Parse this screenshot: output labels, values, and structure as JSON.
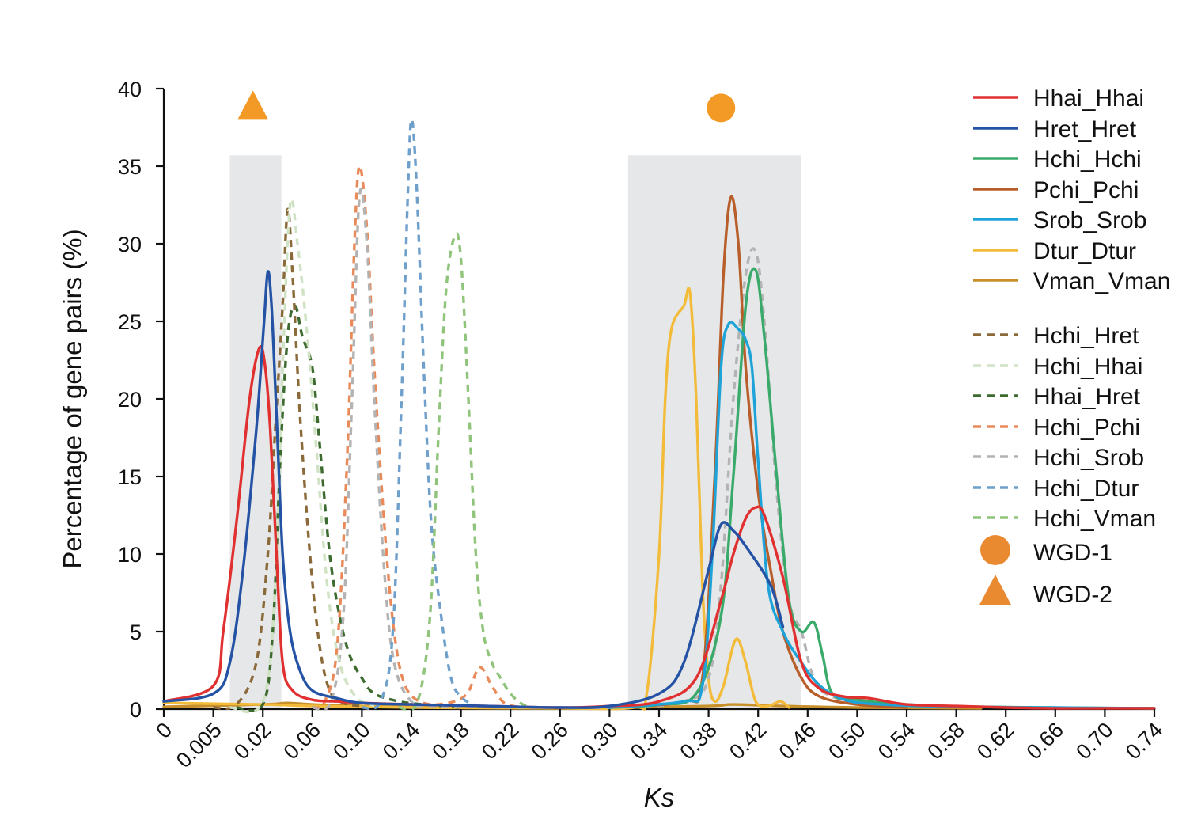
{
  "chart_data": {
    "type": "line",
    "title": "",
    "xlabel": "Ks",
    "ylabel": "Percentage of gene pairs (%)",
    "x_tick_labels": [
      "0",
      "0.005",
      "0.02",
      "0.06",
      "0.10",
      "0.14",
      "0.18",
      "0.22",
      "0.26",
      "0.30",
      "0.34",
      "0.38",
      "0.42",
      "0.46",
      "0.50",
      "0.54",
      "0.58",
      "0.62",
      "0.66",
      "0.70",
      "0.74"
    ],
    "y_ticks": [
      0,
      5,
      10,
      15,
      20,
      25,
      30,
      35,
      40
    ],
    "y_tick_labels": [
      "0",
      "5",
      "10",
      "15",
      "20",
      "25",
      "30",
      "35",
      "40"
    ],
    "ylim": [
      0,
      40
    ],
    "grid": false,
    "legend_position": "right",
    "highlight_regions": [
      {
        "x_range": [
          0.01,
          0.035
        ],
        "y_top": 35.7,
        "color": "#e6e7e9"
      },
      {
        "x_range": [
          0.315,
          0.455
        ],
        "y_top": 35.7,
        "color": "#e6e7e9"
      }
    ],
    "markers": [
      {
        "name": "WGD-1",
        "shape": "circle",
        "x": 0.39,
        "y": 38.5,
        "color": "#f29a25"
      },
      {
        "name": "WGD-2",
        "shape": "triangle",
        "x": 0.017,
        "y": 38.5,
        "color": "#f29a25"
      }
    ],
    "series": [
      {
        "name": "Hhai_Hhai",
        "color": "#e03030",
        "style": "solid",
        "points": [
          [
            -0.04,
            0.1
          ],
          [
            -0.03,
            0.15
          ],
          [
            -0.02,
            0.2
          ],
          [
            -0.01,
            0.3
          ],
          [
            0,
            0.5
          ],
          [
            0.005,
            1.5
          ],
          [
            0.008,
            5
          ],
          [
            0.012,
            12
          ],
          [
            0.016,
            20
          ],
          [
            0.019,
            23.3
          ],
          [
            0.022,
            22
          ],
          [
            0.026,
            18
          ],
          [
            0.031,
            10
          ],
          [
            0.036,
            3
          ],
          [
            0.044,
            1.2
          ],
          [
            0.06,
            0.6
          ],
          [
            0.08,
            0.5
          ],
          [
            0.1,
            0.4
          ],
          [
            0.14,
            0.3
          ],
          [
            0.2,
            0.2
          ],
          [
            0.26,
            0.1
          ],
          [
            0.3,
            0.2
          ],
          [
            0.34,
            0.5
          ],
          [
            0.37,
            2
          ],
          [
            0.39,
            7
          ],
          [
            0.4,
            10
          ],
          [
            0.41,
            12.3
          ],
          [
            0.418,
            13
          ],
          [
            0.425,
            12.5
          ],
          [
            0.44,
            8.5
          ],
          [
            0.455,
            3
          ],
          [
            0.47,
            1.3
          ],
          [
            0.49,
            0.8
          ],
          [
            0.51,
            0.7
          ],
          [
            0.54,
            0.3
          ],
          [
            0.58,
            0.2
          ],
          [
            0.62,
            0.1
          ],
          [
            0.66,
            0.05
          ],
          [
            0.7,
            0.05
          ],
          [
            0.74,
            0.05
          ]
        ]
      },
      {
        "name": "Hret_Hret",
        "color": "#2452a4",
        "style": "solid",
        "points": [
          [
            -0.04,
            0.1
          ],
          [
            -0.02,
            0.2
          ],
          [
            0,
            0.5
          ],
          [
            0.005,
            1
          ],
          [
            0.01,
            3
          ],
          [
            0.014,
            9
          ],
          [
            0.018,
            18
          ],
          [
            0.021,
            25
          ],
          [
            0.024,
            28.2
          ],
          [
            0.027,
            26
          ],
          [
            0.031,
            19
          ],
          [
            0.036,
            10
          ],
          [
            0.042,
            5
          ],
          [
            0.05,
            2.5
          ],
          [
            0.06,
            1.2
          ],
          [
            0.08,
            0.7
          ],
          [
            0.1,
            0.4
          ],
          [
            0.14,
            0.3
          ],
          [
            0.2,
            0.2
          ],
          [
            0.26,
            0.1
          ],
          [
            0.3,
            0.2
          ],
          [
            0.34,
            1
          ],
          [
            0.36,
            3
          ],
          [
            0.38,
            9
          ],
          [
            0.39,
            11.9
          ],
          [
            0.4,
            11.5
          ],
          [
            0.41,
            10.5
          ],
          [
            0.43,
            8
          ],
          [
            0.44,
            5.3
          ]
        ]
      },
      {
        "name": "Hchi_Hchi",
        "color": "#3aaa6a",
        "style": "solid",
        "points": [
          [
            0.3,
            0.1
          ],
          [
            0.34,
            0.3
          ],
          [
            0.37,
            1
          ],
          [
            0.39,
            6
          ],
          [
            0.4,
            15
          ],
          [
            0.41,
            26
          ],
          [
            0.418,
            28.3
          ],
          [
            0.425,
            24
          ],
          [
            0.435,
            15
          ],
          [
            0.445,
            7
          ],
          [
            0.455,
            5
          ],
          [
            0.465,
            5.6
          ],
          [
            0.472,
            3.5
          ],
          [
            0.48,
            1
          ],
          [
            0.5,
            0.6
          ],
          [
            0.54,
            0.3
          ],
          [
            0.6,
            0.15
          ],
          [
            0.74,
            0.05
          ]
        ]
      },
      {
        "name": "Pchi_Pchi",
        "color": "#b85e2a",
        "style": "solid",
        "points": [
          [
            0.3,
            0.1
          ],
          [
            0.36,
            0.5
          ],
          [
            0.375,
            2
          ],
          [
            0.385,
            15
          ],
          [
            0.392,
            28
          ],
          [
            0.398,
            33
          ],
          [
            0.404,
            30
          ],
          [
            0.41,
            22
          ],
          [
            0.42,
            14
          ],
          [
            0.43,
            9
          ],
          [
            0.44,
            5
          ],
          [
            0.455,
            2
          ],
          [
            0.47,
            0.8
          ],
          [
            0.5,
            0.3
          ],
          [
            0.54,
            0.1
          ]
        ]
      },
      {
        "name": "Srob_Srob",
        "color": "#1ea3d8",
        "style": "solid",
        "points": [
          [
            0.3,
            0.1
          ],
          [
            0.36,
            0.5
          ],
          [
            0.375,
            1.5
          ],
          [
            0.383,
            10
          ],
          [
            0.39,
            22
          ],
          [
            0.396,
            24.8
          ],
          [
            0.404,
            24.5
          ],
          [
            0.41,
            23.8
          ],
          [
            0.415,
            22
          ],
          [
            0.42,
            16
          ],
          [
            0.428,
            8
          ],
          [
            0.44,
            5
          ],
          [
            0.455,
            3
          ],
          [
            0.47,
            1.5
          ],
          [
            0.49,
            0.6
          ],
          [
            0.52,
            0.3
          ],
          [
            0.58,
            0.15
          ],
          [
            0.66,
            0.1
          ],
          [
            0.74,
            0.05
          ]
        ]
      },
      {
        "name": "Dtur_Dtur",
        "color": "#f2bc3a",
        "style": "solid",
        "points": [
          [
            -0.04,
            1.6
          ],
          [
            -0.03,
            2.4
          ],
          [
            -0.02,
            1.3
          ],
          [
            -0.01,
            0.6
          ],
          [
            0,
            0.4
          ],
          [
            0.02,
            0.3
          ],
          [
            0.06,
            0.2
          ],
          [
            0.14,
            0.1
          ],
          [
            0.26,
            0.05
          ],
          [
            0.32,
            0.1
          ],
          [
            0.33,
            1
          ],
          [
            0.34,
            10
          ],
          [
            0.345,
            20
          ],
          [
            0.35,
            24.5
          ],
          [
            0.36,
            26
          ],
          [
            0.365,
            26.8
          ],
          [
            0.37,
            20
          ],
          [
            0.375,
            8
          ],
          [
            0.38,
            2
          ],
          [
            0.385,
            0.5
          ],
          [
            0.392,
            1.5
          ],
          [
            0.402,
            4.5
          ],
          [
            0.41,
            3
          ],
          [
            0.418,
            0.5
          ],
          [
            0.428,
            0.2
          ],
          [
            0.438,
            0.5
          ],
          [
            0.445,
            0.1
          ]
        ]
      },
      {
        "name": "Vman_Vman",
        "color": "#c8902a",
        "style": "solid",
        "points": [
          [
            0,
            0.15
          ],
          [
            0.02,
            0.3
          ],
          [
            0.04,
            0.4
          ],
          [
            0.06,
            0.3
          ],
          [
            0.1,
            0.2
          ],
          [
            0.18,
            0.1
          ],
          [
            0.3,
            0.1
          ],
          [
            0.38,
            0.2
          ],
          [
            0.4,
            0.3
          ],
          [
            0.44,
            0.2
          ],
          [
            0.5,
            0.1
          ],
          [
            0.6,
            0.05
          ]
        ]
      },
      {
        "name": "Hchi_Hret",
        "color": "#8b6a3a",
        "style": "dashed",
        "points": [
          [
            0.005,
            0.1
          ],
          [
            0.012,
            0.3
          ],
          [
            0.018,
            3
          ],
          [
            0.024,
            10
          ],
          [
            0.03,
            18
          ],
          [
            0.036,
            26
          ],
          [
            0.04,
            32.2
          ],
          [
            0.044,
            28
          ],
          [
            0.05,
            19
          ],
          [
            0.058,
            10
          ],
          [
            0.066,
            4
          ],
          [
            0.074,
            1.2
          ],
          [
            0.085,
            0.4
          ],
          [
            0.1,
            0.2
          ]
        ]
      },
      {
        "name": "Hchi_Hhai",
        "color": "#d0e2c4",
        "style": "dashed",
        "points": [
          [
            0.01,
            0.1
          ],
          [
            0.02,
            0.5
          ],
          [
            0.03,
            8
          ],
          [
            0.036,
            22
          ],
          [
            0.042,
            32.5
          ],
          [
            0.048,
            30
          ],
          [
            0.056,
            24
          ],
          [
            0.064,
            16
          ],
          [
            0.072,
            8
          ],
          [
            0.082,
            3
          ],
          [
            0.095,
            0.8
          ],
          [
            0.11,
            0.2
          ]
        ]
      },
      {
        "name": "Hhai_Hret",
        "color": "#3d6b2f",
        "style": "dashed",
        "points": [
          [
            0.012,
            0.1
          ],
          [
            0.02,
            0.3
          ],
          [
            0.028,
            5
          ],
          [
            0.034,
            16
          ],
          [
            0.04,
            24
          ],
          [
            0.046,
            26
          ],
          [
            0.052,
            24
          ],
          [
            0.06,
            22
          ],
          [
            0.066,
            17
          ],
          [
            0.074,
            10
          ],
          [
            0.082,
            6
          ],
          [
            0.09,
            3.5
          ],
          [
            0.1,
            2
          ],
          [
            0.11,
            1
          ],
          [
            0.13,
            0.5
          ],
          [
            0.15,
            0.3
          ],
          [
            0.18,
            0.1
          ]
        ]
      },
      {
        "name": "Hchi_Pchi",
        "color": "#e88a5a",
        "style": "dashed",
        "points": [
          [
            0.06,
            0.1
          ],
          [
            0.07,
            0.5
          ],
          [
            0.08,
            4
          ],
          [
            0.088,
            16
          ],
          [
            0.094,
            30
          ],
          [
            0.098,
            35
          ],
          [
            0.104,
            31
          ],
          [
            0.11,
            22
          ],
          [
            0.118,
            12
          ],
          [
            0.126,
            5
          ],
          [
            0.135,
            1.5
          ],
          [
            0.15,
            0.4
          ],
          [
            0.17,
            0.4
          ],
          [
            0.185,
            1
          ],
          [
            0.195,
            2.7
          ],
          [
            0.205,
            1.5
          ],
          [
            0.215,
            0.4
          ],
          [
            0.23,
            0.1
          ]
        ]
      },
      {
        "name": "Hchi_Srob",
        "color": "#b3b3b3",
        "style": "dashed",
        "points": [
          [
            0.06,
            0.1
          ],
          [
            0.075,
            0.5
          ],
          [
            0.085,
            6
          ],
          [
            0.092,
            20
          ],
          [
            0.098,
            33
          ],
          [
            0.104,
            30
          ],
          [
            0.11,
            20
          ],
          [
            0.118,
            9
          ],
          [
            0.126,
            3
          ],
          [
            0.14,
            0.5
          ],
          [
            0.16,
            0.2
          ],
          [
            0.3,
            0.1
          ],
          [
            0.36,
            0.5
          ],
          [
            0.38,
            2
          ],
          [
            0.39,
            8
          ],
          [
            0.4,
            20
          ],
          [
            0.41,
            28
          ],
          [
            0.418,
            29.5
          ],
          [
            0.425,
            25
          ],
          [
            0.435,
            14
          ],
          [
            0.445,
            7
          ],
          [
            0.455,
            5
          ],
          [
            0.465,
            2
          ],
          [
            0.48,
            0.8
          ],
          [
            0.52,
            0.2
          ]
        ]
      },
      {
        "name": "Hchi_Dtur",
        "color": "#6fa0cc",
        "style": "dashed",
        "points": [
          [
            0.1,
            0.1
          ],
          [
            0.115,
            0.5
          ],
          [
            0.125,
            5
          ],
          [
            0.132,
            20
          ],
          [
            0.137,
            33
          ],
          [
            0.14,
            38
          ],
          [
            0.144,
            34
          ],
          [
            0.15,
            22
          ],
          [
            0.156,
            12
          ],
          [
            0.164,
            6
          ],
          [
            0.172,
            2
          ],
          [
            0.18,
            0.8
          ],
          [
            0.19,
            0.3
          ],
          [
            0.2,
            0.1
          ]
        ]
      },
      {
        "name": "Hchi_Vman",
        "color": "#8fc47a",
        "style": "dashed",
        "points": [
          [
            0.13,
            0.1
          ],
          [
            0.145,
            0.5
          ],
          [
            0.155,
            6
          ],
          [
            0.162,
            18
          ],
          [
            0.168,
            27
          ],
          [
            0.175,
            30.5
          ],
          [
            0.18,
            29
          ],
          [
            0.186,
            20
          ],
          [
            0.192,
            10
          ],
          [
            0.198,
            5
          ],
          [
            0.205,
            3
          ],
          [
            0.212,
            2
          ],
          [
            0.22,
            1
          ],
          [
            0.23,
            0.3
          ],
          [
            0.24,
            0.1
          ]
        ]
      }
    ]
  }
}
